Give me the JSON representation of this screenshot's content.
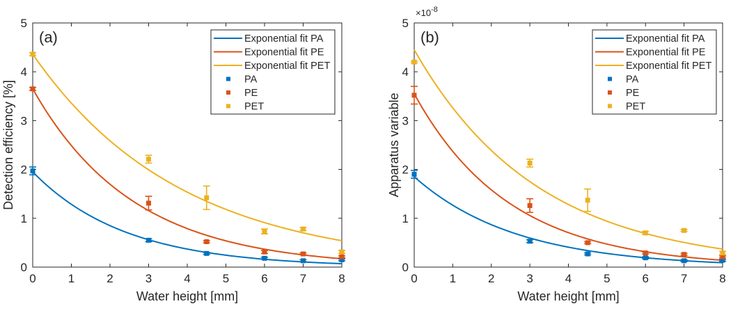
{
  "chart_data": [
    {
      "type": "scatter",
      "panel_label": "(a)",
      "title": "",
      "xlabel": "Water height [mm]",
      "ylabel": "Detection efficiency [%]",
      "xlim": [
        0,
        8
      ],
      "ylim": [
        0,
        5
      ],
      "xticks": [
        0,
        1,
        2,
        3,
        4,
        5,
        6,
        7,
        8
      ],
      "yticks": [
        0,
        1,
        2,
        3,
        4,
        5
      ],
      "y_exponent_label": "",
      "grid": false,
      "legend_position": "top-right",
      "x": [
        0,
        3,
        4.5,
        6,
        7,
        8
      ],
      "series": [
        {
          "name": "PA",
          "color": "#0072BD",
          "values": [
            1.97,
            0.55,
            0.28,
            0.18,
            0.13,
            0.15
          ],
          "errors": [
            0.08,
            0.03,
            0.02,
            0.02,
            0.02,
            0.02
          ]
        },
        {
          "name": "PE",
          "color": "#D95319",
          "values": [
            3.65,
            1.31,
            0.52,
            0.31,
            0.27,
            0.21
          ],
          "errors": [
            0.03,
            0.14,
            0.02,
            0.03,
            0.02,
            0.02
          ]
        },
        {
          "name": "PET",
          "color": "#EDB120",
          "values": [
            4.36,
            2.21,
            1.42,
            0.73,
            0.78,
            0.31
          ],
          "errors": [
            0.03,
            0.08,
            0.24,
            0.05,
            0.03,
            0.03
          ]
        }
      ],
      "fits": [
        {
          "name": "Exponential fit PA",
          "color": "#0072BD",
          "a": 1.95,
          "b": 0.416
        },
        {
          "name": "Exponential fit PE",
          "color": "#D95319",
          "a": 3.65,
          "b": 0.383
        },
        {
          "name": "Exponential fit PET",
          "color": "#EDB120",
          "a": 4.36,
          "b": 0.261
        }
      ],
      "legend": [
        "Exponential fit PA",
        "Exponential fit PE",
        "Exponential fit PET",
        "PA",
        "PE",
        "PET"
      ]
    },
    {
      "type": "scatter",
      "panel_label": "(b)",
      "title": "",
      "xlabel": "Water height [mm]",
      "ylabel": "Apparatus variable",
      "xlim": [
        0,
        8
      ],
      "ylim": [
        0,
        5
      ],
      "xticks": [
        0,
        1,
        2,
        3,
        4,
        5,
        6,
        7,
        8
      ],
      "yticks": [
        0,
        1,
        2,
        3,
        4,
        5
      ],
      "y_exponent_label": "×10",
      "y_exponent_power": "-8",
      "grid": false,
      "legend_position": "top-right",
      "x": [
        0,
        3,
        4.5,
        6,
        7,
        8
      ],
      "series": [
        {
          "name": "PA",
          "color": "#0072BD",
          "values": [
            1.9,
            0.53,
            0.27,
            0.19,
            0.13,
            0.14
          ],
          "errors": [
            0.08,
            0.03,
            0.02,
            0.02,
            0.02,
            0.02
          ]
        },
        {
          "name": "PE",
          "color": "#D95319",
          "values": [
            3.52,
            1.26,
            0.5,
            0.29,
            0.26,
            0.21
          ],
          "errors": [
            0.18,
            0.14,
            0.02,
            0.02,
            0.02,
            0.02
          ]
        },
        {
          "name": "PET",
          "color": "#EDB120",
          "values": [
            4.2,
            2.13,
            1.37,
            0.7,
            0.75,
            0.29
          ],
          "errors": [
            0.02,
            0.08,
            0.23,
            0.03,
            0.02,
            0.03
          ]
        }
      ],
      "fits": [
        {
          "name": "Exponential fit PA",
          "color": "#0072BD",
          "a": 1.85,
          "b": 0.378
        },
        {
          "name": "Exponential fit PE",
          "color": "#D95319",
          "a": 3.55,
          "b": 0.404
        },
        {
          "name": "Exponential fit PET",
          "color": "#EDB120",
          "a": 4.45,
          "b": 0.311
        }
      ],
      "legend": [
        "Exponential fit PA",
        "Exponential fit PE",
        "Exponential fit PET",
        "PA",
        "PE",
        "PET"
      ]
    }
  ]
}
